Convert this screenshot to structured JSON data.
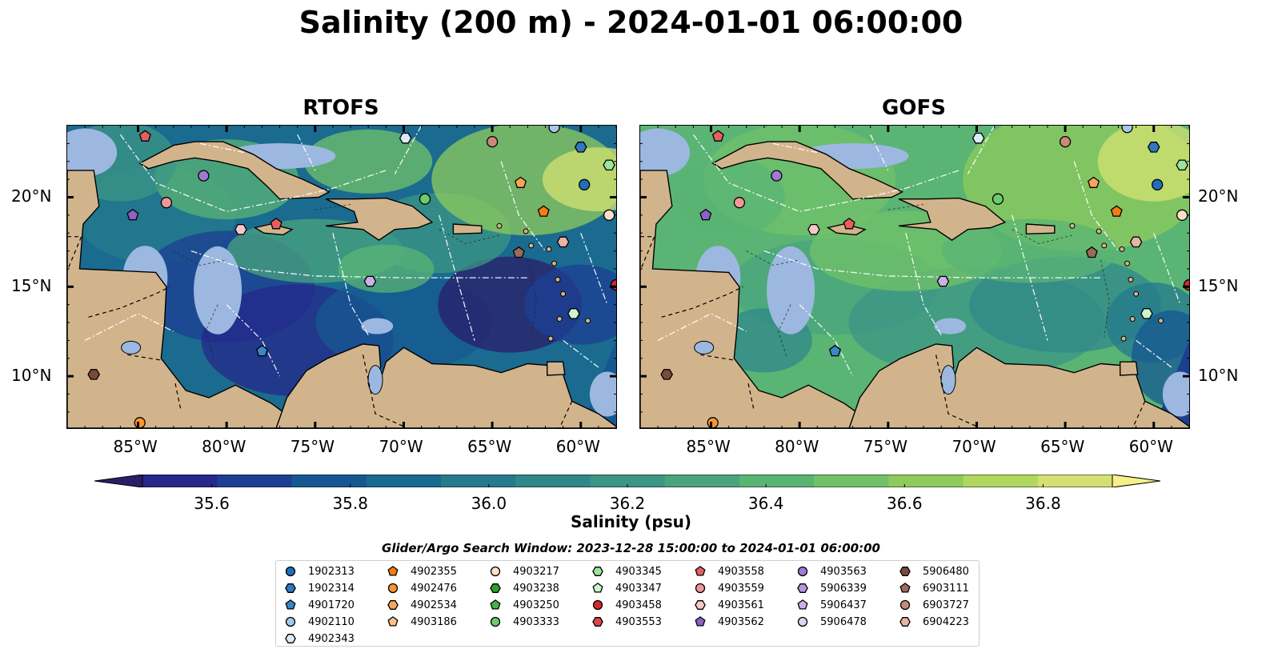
{
  "title": "Salinity (200 m) - 2024-01-01 06:00:00",
  "panels": [
    {
      "name": "RTOFS"
    },
    {
      "name": "GOFS"
    }
  ],
  "lon_ticks": [
    "85°W",
    "80°W",
    "75°W",
    "70°W",
    "65°W",
    "60°W"
  ],
  "lat_ticks": [
    "20°N",
    "15°N",
    "10°N"
  ],
  "colorbar": {
    "label": "Salinity (psu)",
    "ticks": [
      "35.6",
      "35.8",
      "36.0",
      "36.2",
      "36.4",
      "36.6",
      "36.8"
    ],
    "range": [
      35.5,
      36.9
    ],
    "colors": [
      "#2a1e6a",
      "#25278a",
      "#1d3f93",
      "#155891",
      "#1a6b8f",
      "#267a8c",
      "#30888a",
      "#3c9585",
      "#4aa47d",
      "#5ab474",
      "#72c168",
      "#8fcb5c",
      "#b0d75e",
      "#d4e072",
      "#f5f08a"
    ]
  },
  "search_window": "Glider/Argo Search Window: 2023-12-28 15:00:00 to 2024-01-01 06:00:00",
  "legend": [
    {
      "id": "1902313",
      "color": "#1f6fb8",
      "shape": "circle"
    },
    {
      "id": "1902314",
      "color": "#2f79c0",
      "shape": "hexagon"
    },
    {
      "id": "4901720",
      "color": "#3a86c8",
      "shape": "pentagon"
    },
    {
      "id": "4902110",
      "color": "#a3c8ea",
      "shape": "circle"
    },
    {
      "id": "4902343",
      "color": "#d9ebf8",
      "shape": "hexagon"
    },
    {
      "id": "4902355",
      "color": "#f57c10",
      "shape": "pentagon"
    },
    {
      "id": "4902476",
      "color": "#f7952f",
      "shape": "circle"
    },
    {
      "id": "4902534",
      "color": "#f9a65a",
      "shape": "hexagon"
    },
    {
      "id": "4903186",
      "color": "#fbc08c",
      "shape": "pentagon"
    },
    {
      "id": "4903217",
      "color": "#fde0c5",
      "shape": "circle"
    },
    {
      "id": "4903238",
      "color": "#2ca02c",
      "shape": "hexagon"
    },
    {
      "id": "4903250",
      "color": "#47b347",
      "shape": "pentagon"
    },
    {
      "id": "4903333",
      "color": "#6ccc6c",
      "shape": "circle"
    },
    {
      "id": "4903345",
      "color": "#9de39d",
      "shape": "hexagon"
    },
    {
      "id": "4903347",
      "color": "#cdf5cd",
      "shape": "pentagon"
    },
    {
      "id": "4903458",
      "color": "#d62728",
      "shape": "circle"
    },
    {
      "id": "4903553",
      "color": "#e04545",
      "shape": "hexagon"
    },
    {
      "id": "4903558",
      "color": "#e65f5f",
      "shape": "pentagon"
    },
    {
      "id": "4903559",
      "color": "#f09898",
      "shape": "circle"
    },
    {
      "id": "4903561",
      "color": "#f8c8c8",
      "shape": "hexagon"
    },
    {
      "id": "4903562",
      "color": "#8c62c6",
      "shape": "pentagon"
    },
    {
      "id": "4903563",
      "color": "#a07ad2",
      "shape": "circle"
    },
    {
      "id": "5906339",
      "color": "#b596de",
      "shape": "hexagon"
    },
    {
      "id": "5906437",
      "color": "#c9b1e8",
      "shape": "pentagon"
    },
    {
      "id": "5906478",
      "color": "#e1d1f4",
      "shape": "circle"
    },
    {
      "id": "5906480",
      "color": "#7b4a3c",
      "shape": "hexagon"
    },
    {
      "id": "6903111",
      "color": "#9a6a5a",
      "shape": "pentagon"
    },
    {
      "id": "6903727",
      "color": "#c98a7a",
      "shape": "circle"
    },
    {
      "id": "6904223",
      "color": "#e8b4a4",
      "shape": "hexagon"
    }
  ]
}
